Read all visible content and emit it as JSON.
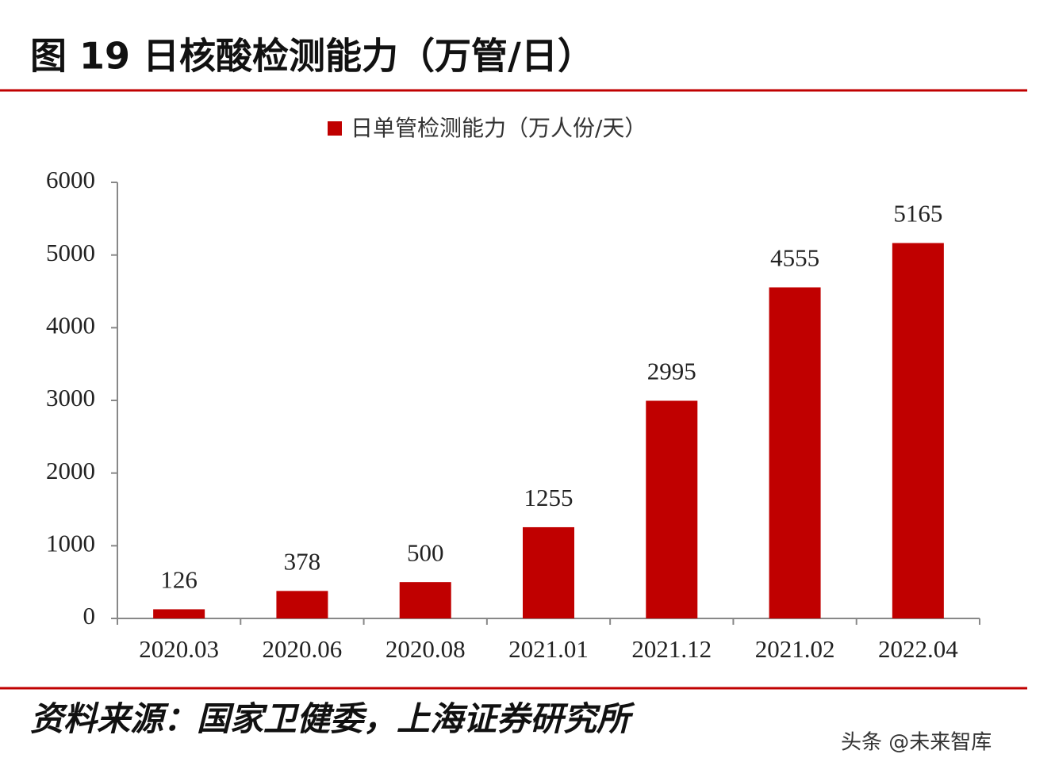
{
  "chart_data": {
    "type": "bar",
    "title": "图 19 日核酸检测能力（万管/日）",
    "categories": [
      "2020.03",
      "2020.06",
      "2020.08",
      "2021.01",
      "2021.12",
      "2021.02",
      "2022.04"
    ],
    "series": [
      {
        "name": "日单管检测能力（万人份/天）",
        "color": "#c00000",
        "values": [
          126,
          378,
          500,
          1255,
          2995,
          4555,
          5165
        ]
      }
    ],
    "ylim": [
      0,
      6000
    ],
    "yticks": [
      0,
      1000,
      2000,
      3000,
      4000,
      5000,
      6000
    ],
    "grid": false,
    "legend": "top",
    "source": "资料来源：国家卫健委，上海证券研究所"
  },
  "watermark": "头条 @未来智库"
}
